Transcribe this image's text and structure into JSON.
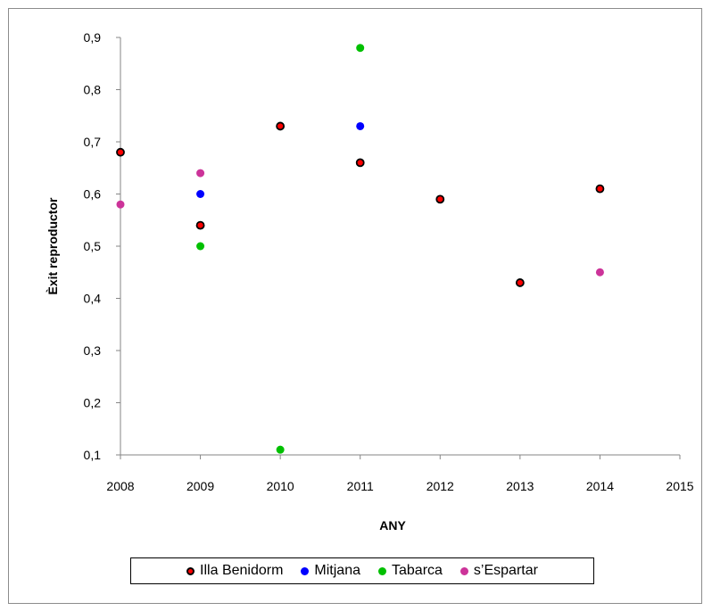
{
  "chart_data": {
    "type": "scatter",
    "xlabel": "ANY",
    "ylabel": "Èxit reproductor",
    "xlim": [
      2008,
      2015
    ],
    "ylim": [
      0.1,
      0.9
    ],
    "x_ticks": [
      "2008",
      "2009",
      "2010",
      "2011",
      "2012",
      "2013",
      "2014",
      "2015"
    ],
    "y_ticks": [
      "0,1",
      "0,2",
      "0,3",
      "0,4",
      "0,5",
      "0,6",
      "0,7",
      "0,8",
      "0,9"
    ],
    "grid": false,
    "legend_position": "bottom",
    "series": [
      {
        "name": "Illa Benidorm",
        "color": "#ff0000",
        "edge_color": "#000000",
        "points": [
          {
            "x": 2008,
            "y": 0.68
          },
          {
            "x": 2009,
            "y": 0.54
          },
          {
            "x": 2010,
            "y": 0.73
          },
          {
            "x": 2011,
            "y": 0.66
          },
          {
            "x": 2012,
            "y": 0.59
          },
          {
            "x": 2013,
            "y": 0.43
          },
          {
            "x": 2014,
            "y": 0.61
          }
        ]
      },
      {
        "name": "Mitjana",
        "color": "#0000ff",
        "points": [
          {
            "x": 2009,
            "y": 0.6
          },
          {
            "x": 2011,
            "y": 0.73
          }
        ]
      },
      {
        "name": "Tabarca",
        "color": "#00c000",
        "points": [
          {
            "x": 2009,
            "y": 0.5
          },
          {
            "x": 2010,
            "y": 0.11
          },
          {
            "x": 2011,
            "y": 0.88
          }
        ]
      },
      {
        "name": "s’Espartar",
        "color": "#cc3399",
        "points": [
          {
            "x": 2008,
            "y": 0.58
          },
          {
            "x": 2009,
            "y": 0.64
          },
          {
            "x": 2014,
            "y": 0.45
          }
        ]
      }
    ]
  }
}
